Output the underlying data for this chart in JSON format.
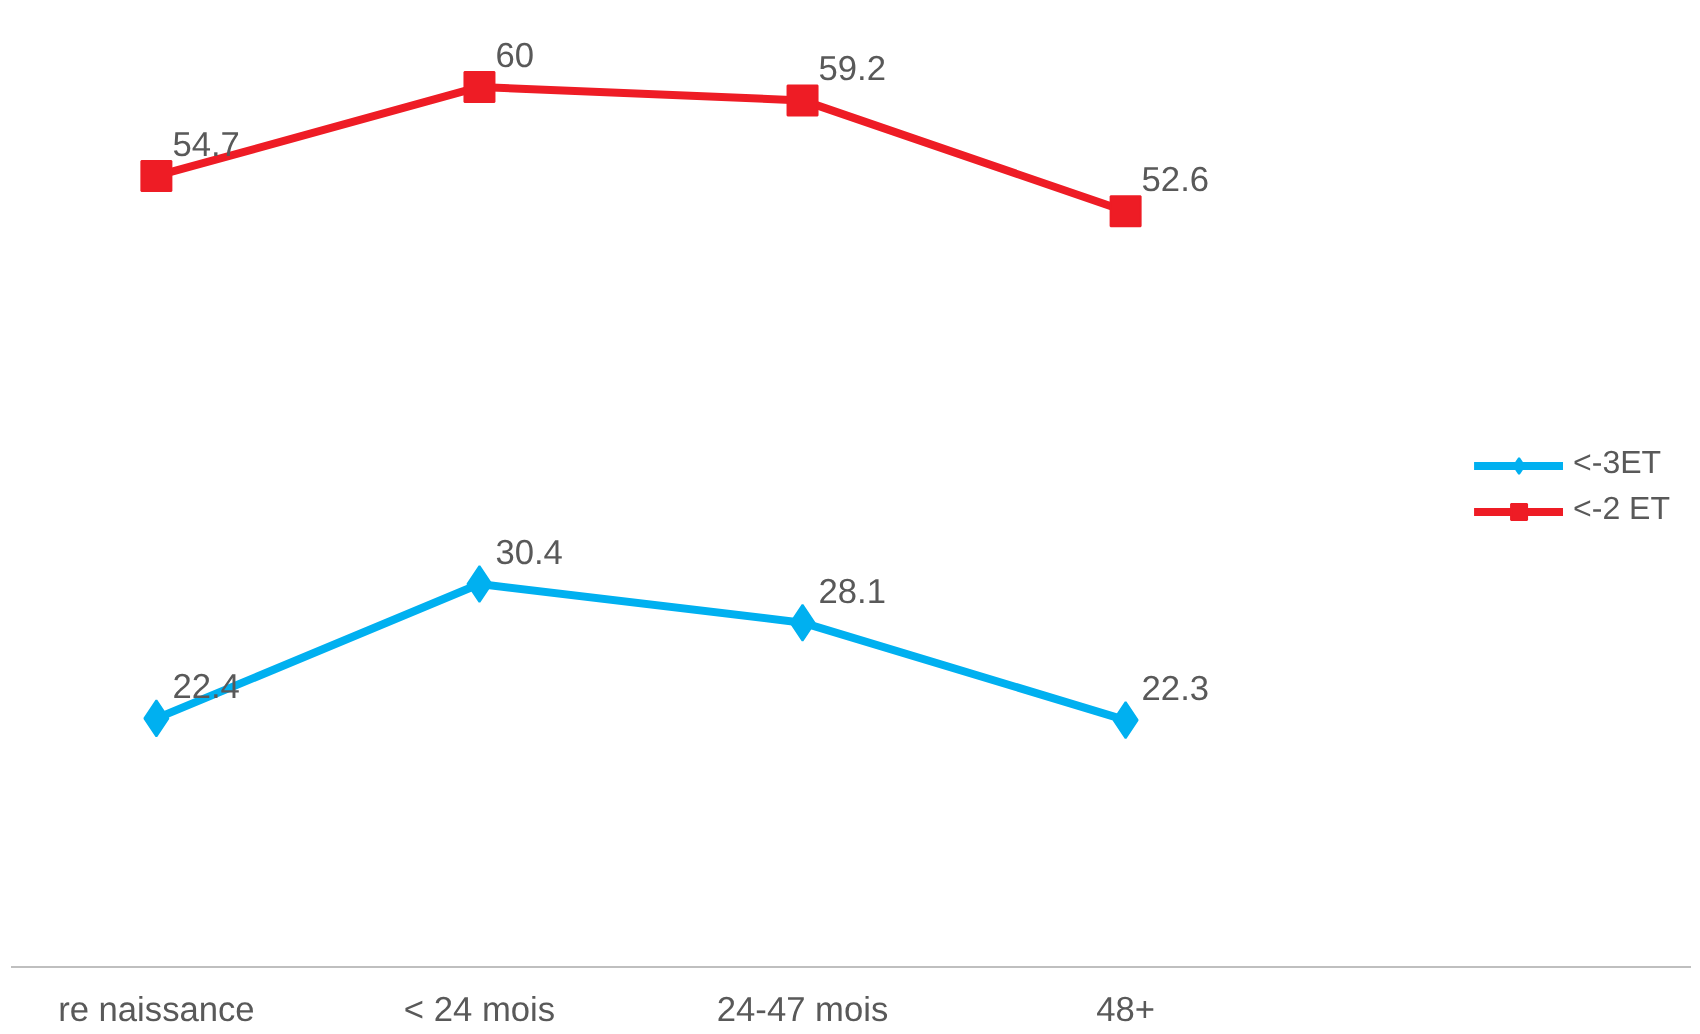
{
  "chart_data": {
    "type": "line",
    "categories": [
      "re naissance",
      "< 24 mois",
      "24-47 mois",
      "48+"
    ],
    "series": [
      {
        "name": "<-3ET",
        "color": "#00b0f0",
        "marker": "diamond",
        "values": [
          22.4,
          30.4,
          28.1,
          22.3
        ]
      },
      {
        "name": "<-2 ET",
        "color": "#ee1c25",
        "marker": "square",
        "values": [
          54.7,
          60,
          59.2,
          52.6
        ]
      }
    ],
    "data_labels": true,
    "legend": "right",
    "grid": false,
    "tick_labels": "x",
    "line_style": "solid"
  }
}
